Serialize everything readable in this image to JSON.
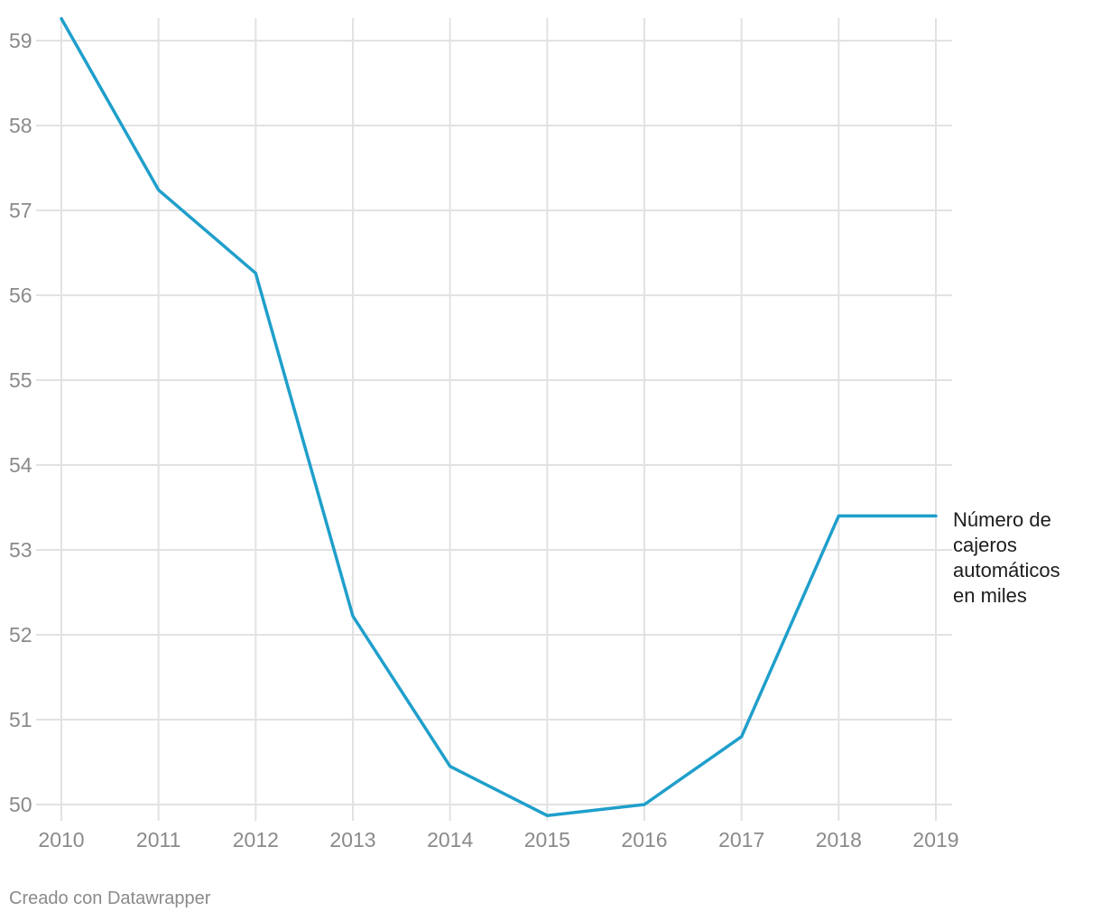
{
  "chart_data": {
    "type": "line",
    "title": "",
    "xlabel": "",
    "ylabel": "",
    "x": [
      2010,
      2011,
      2012,
      2013,
      2014,
      2015,
      2016,
      2017,
      2018,
      2019
    ],
    "x_tick_labels": [
      "2010",
      "2011",
      "2012",
      "2013",
      "2014",
      "2015",
      "2016",
      "2017",
      "2018",
      "2019"
    ],
    "y_tick_labels": [
      "50",
      "51",
      "52",
      "53",
      "54",
      "55",
      "56",
      "57",
      "58",
      "59"
    ],
    "ylim": [
      50,
      59
    ],
    "grid": true,
    "legend": "inline-right",
    "series": [
      {
        "name": "Número de cajeros automáticos en miles",
        "name_lines": [
          "Número de",
          "cajeros",
          "automáticos",
          "en miles"
        ],
        "color": "#1f9fcb",
        "values": [
          59.26,
          57.24,
          56.26,
          52.22,
          50.45,
          49.87,
          50.0,
          50.8,
          53.4,
          53.4
        ]
      }
    ]
  },
  "footer": {
    "credit": "Creado con Datawrapper"
  },
  "colors": {
    "grid": "#e2e2e2",
    "axis_text": "#8a8a8a",
    "label_text": "#1d1d1d"
  }
}
